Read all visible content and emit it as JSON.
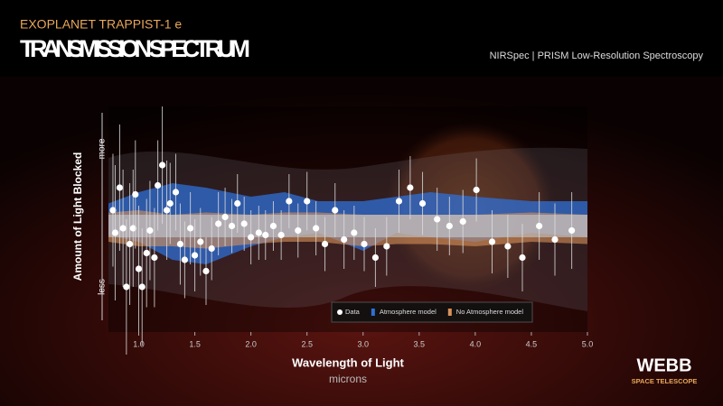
{
  "header": {
    "kicker": "EXOPLANET TRAPPIST-1 e",
    "title": "TRANSMISSION SPECTRUM",
    "instrument": "NIRSpec | PRISM Low-Resolution Spectroscopy"
  },
  "logo": {
    "name": "WEBB",
    "subtitle": "SPACE TELESCOPE"
  },
  "chart_data": {
    "type": "scatter",
    "x_label": "Wavelength of Light",
    "x_unit": "microns",
    "y_label": "Amount of Light Blocked",
    "y_more": "more",
    "y_less": "less",
    "xlim": [
      0.73,
      5.0
    ],
    "ylim": [
      0,
      100
    ],
    "xticks": [
      {
        "value": 1.0,
        "label": "1.0"
      },
      1.5,
      {
        "value": 2.0,
        "label": "2.0"
      },
      2.5,
      {
        "value": 3.0,
        "label": "3.0"
      },
      3.5,
      {
        "value": 4.0,
        "label": "4.0"
      },
      4.5,
      {
        "value": 5.0,
        "label": "5.0"
      }
    ],
    "legend": "bottom-right",
    "series": [
      {
        "name": "Data",
        "color": "#ffffff",
        "x": [
          0.77,
          0.79,
          0.83,
          0.86,
          0.89,
          0.92,
          0.95,
          0.97,
          1.0,
          1.03,
          1.07,
          1.1,
          1.14,
          1.17,
          1.21,
          1.25,
          1.28,
          1.33,
          1.37,
          1.41,
          1.46,
          1.5,
          1.55,
          1.6,
          1.65,
          1.71,
          1.77,
          1.83,
          1.88,
          1.94,
          2.0,
          2.07,
          2.13,
          2.2,
          2.27,
          2.34,
          2.42,
          2.5,
          2.58,
          2.66,
          2.75,
          2.83,
          2.92,
          3.01,
          3.11,
          3.21,
          3.32,
          3.42,
          3.53,
          3.66,
          3.77,
          3.89,
          4.01,
          4.15,
          4.29,
          4.42,
          4.57,
          4.71,
          4.86
        ],
        "values": [
          54,
          44,
          64,
          46,
          20,
          39,
          46,
          61,
          28,
          20,
          35,
          45,
          33,
          65,
          74,
          54,
          57,
          62,
          39,
          32,
          46,
          34,
          40,
          27,
          37,
          48,
          51,
          47,
          57,
          48,
          42,
          44,
          43,
          47,
          43,
          58,
          45,
          58,
          46,
          39,
          54,
          41,
          44,
          39,
          33,
          38,
          58,
          64,
          57,
          50,
          47,
          49,
          63,
          40,
          38,
          33,
          47,
          41,
          45
        ],
        "errors": [
          25,
          30,
          28,
          26,
          30,
          27,
          26,
          24,
          28,
          26,
          24,
          22,
          22,
          20,
          26,
          22,
          18,
          17,
          18,
          17,
          16,
          16,
          15,
          15,
          14,
          14,
          13,
          12,
          13,
          12,
          12,
          12,
          11,
          11,
          11,
          12,
          12,
          13,
          12,
          12,
          12,
          13,
          12,
          12,
          13,
          13,
          14,
          14,
          14,
          14,
          13,
          14,
          14,
          14,
          14,
          15,
          15,
          16,
          17
        ]
      },
      {
        "name": "Atmosphere model",
        "color": "#2f6fd6",
        "x": [
          0.73,
          1.0,
          1.3,
          1.6,
          2.0,
          2.3,
          2.6,
          3.0,
          3.3,
          3.6,
          4.0,
          4.5,
          5.0
        ],
        "lower": [
          43,
          40,
          32,
          30,
          38,
          42,
          44,
          36,
          44,
          42,
          40,
          44,
          42
        ],
        "upper": [
          57,
          62,
          66,
          64,
          60,
          62,
          58,
          58,
          60,
          62,
          60,
          58,
          58
        ]
      },
      {
        "name": "No Atmosphere model",
        "color": "#d9925a",
        "x": [
          0.73,
          1.0,
          1.3,
          1.6,
          2.0,
          2.3,
          2.6,
          3.0,
          3.3,
          3.6,
          4.0,
          4.5,
          5.0
        ],
        "lower": [
          40,
          38,
          38,
          37,
          39,
          40,
          40,
          38,
          39,
          39,
          38,
          40,
          39
        ],
        "upper": [
          53,
          54,
          52,
          53,
          52,
          53,
          53,
          52,
          52,
          52,
          52,
          53,
          52
        ]
      }
    ]
  }
}
